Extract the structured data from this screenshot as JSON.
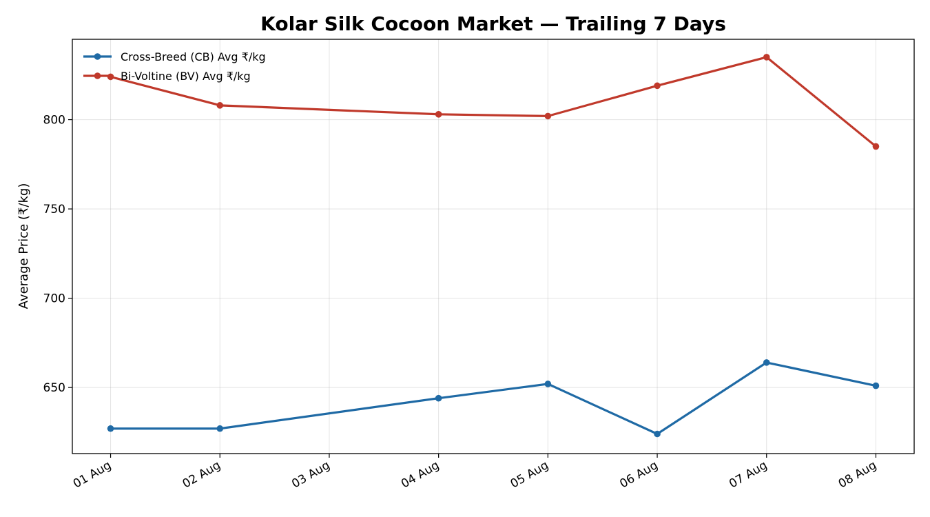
{
  "chart_data": {
    "type": "line",
    "title": "Kolar Silk Cocoon Market — Trailing 7 Days",
    "xlabel": "",
    "ylabel": "Average Price (₹/kg)",
    "x": [
      "2024-08-01",
      "2024-08-02",
      "2024-08-04",
      "2024-08-05",
      "2024-08-06",
      "2024-08-07",
      "2024-08-08"
    ],
    "x_ticks": [
      "01 Aug",
      "02 Aug",
      "03 Aug",
      "04 Aug",
      "05 Aug",
      "06 Aug",
      "07 Aug",
      "08 Aug"
    ],
    "ylim": [
      613,
      845
    ],
    "y_ticks": [
      650,
      700,
      750,
      800
    ],
    "grid": true,
    "legend_position": "top-left",
    "series": [
      {
        "name": "Cross-Breed (CB) Avg ₹/kg",
        "color": "#1f6aa5",
        "values": [
          627,
          627,
          644,
          652,
          624,
          664,
          651
        ]
      },
      {
        "name": "Bi-Voltine (BV) Avg ₹/kg",
        "color": "#c0392b",
        "values": [
          824,
          808,
          803,
          802,
          819,
          835,
          785
        ]
      }
    ]
  }
}
